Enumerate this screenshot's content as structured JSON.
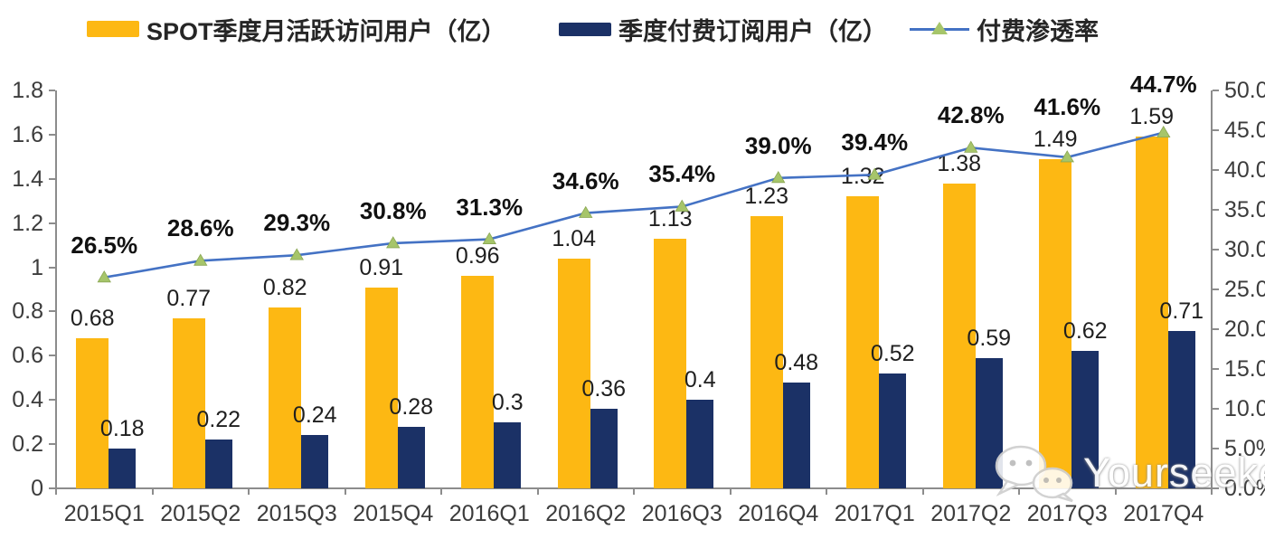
{
  "legend": {
    "items": [
      {
        "label": "SPOT季度月活跃访问用户（亿）",
        "type": "bar-swatch",
        "color": "#FDB813"
      },
      {
        "label": "季度付费订阅用户（亿）",
        "type": "bar-swatch",
        "color": "#1B3166"
      },
      {
        "label": "付费渗透率",
        "type": "line-swatch",
        "line_color": "#4472C4",
        "marker_color": "#A6C56A"
      }
    ]
  },
  "chart_data": {
    "type": "bar+line",
    "categories": [
      "2015Q1",
      "2015Q2",
      "2015Q3",
      "2015Q4",
      "2016Q1",
      "2016Q2",
      "2016Q3",
      "2016Q4",
      "2017Q1",
      "2017Q2",
      "2017Q3",
      "2017Q4"
    ],
    "series": [
      {
        "name": "SPOT季度月活跃访问用户（亿）",
        "type": "bar",
        "axis": "left",
        "color": "#FDB813",
        "values": [
          0.68,
          0.77,
          0.82,
          0.91,
          0.96,
          1.04,
          1.13,
          1.23,
          1.32,
          1.38,
          1.49,
          1.59
        ],
        "labels": [
          "0.68",
          "0.77",
          "0.82",
          "0.91",
          "0.96",
          "1.04",
          "1.13",
          "1.23",
          "1.32",
          "1.38",
          "1.49",
          "1.59"
        ]
      },
      {
        "name": "季度付费订阅用户（亿）",
        "type": "bar",
        "axis": "left",
        "color": "#1B3166",
        "values": [
          0.18,
          0.22,
          0.24,
          0.28,
          0.3,
          0.36,
          0.4,
          0.48,
          0.52,
          0.59,
          0.62,
          0.71
        ],
        "labels": [
          "0.18",
          "0.22",
          "0.24",
          "0.28",
          "0.3",
          "0.36",
          "0.4",
          "0.48",
          "0.52",
          "0.59",
          "0.62",
          "0.71"
        ]
      },
      {
        "name": "付费渗透率",
        "type": "line",
        "axis": "right",
        "color": "#4472C4",
        "marker": "triangle",
        "marker_color": "#A6C56A",
        "values_percent": [
          26.5,
          28.6,
          29.3,
          30.8,
          31.3,
          34.6,
          35.4,
          39.0,
          39.4,
          42.8,
          41.6,
          44.7
        ],
        "labels": [
          "26.5%",
          "28.6%",
          "29.3%",
          "30.8%",
          "31.3%",
          "34.6%",
          "35.4%",
          "39.0%",
          "39.4%",
          "42.8%",
          "41.6%",
          "44.7%"
        ]
      }
    ],
    "left_axis": {
      "min": 0,
      "max": 1.8,
      "step": 0.2,
      "tick_labels": [
        "0",
        "0.2",
        "0.4",
        "0.6",
        "0.8",
        "1",
        "1.2",
        "1.4",
        "1.6",
        "1.8"
      ]
    },
    "right_axis": {
      "min_pct": 0,
      "max_pct": 50,
      "step_pct": 5,
      "tick_labels": [
        "0.0%",
        "5.0%",
        "10.0%",
        "15.0%",
        "20.0%",
        "25.0%",
        "30.0%",
        "35.0%",
        "40.0%",
        "45.0%",
        "50.0%"
      ]
    },
    "grid": false,
    "legend_position": "top"
  },
  "watermark": {
    "text": "Yourseeker",
    "icon": "wechat-icon"
  }
}
